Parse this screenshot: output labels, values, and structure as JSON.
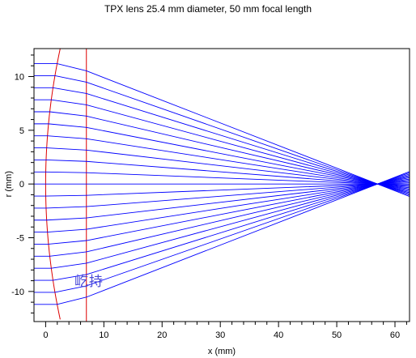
{
  "chart_data": {
    "type": "line",
    "title": "TPX lens 25.4 mm diameter, 50 mm focal length",
    "xlabel": "x (mm)",
    "ylabel": "r (mm)",
    "xlim": [
      -2,
      62.5
    ],
    "ylim": [
      -12.8,
      12.6
    ],
    "x_ticks": [
      0,
      10,
      20,
      30,
      40,
      50,
      60
    ],
    "y_ticks": [
      -10,
      -5,
      0,
      5,
      10
    ],
    "grid": false,
    "rays": {
      "color": "#0000ff",
      "count": 21,
      "input_heights": [
        -11.2,
        -10.08,
        -8.96,
        -7.84,
        -6.72,
        -5.6,
        -4.48,
        -3.36,
        -2.24,
        -1.12,
        0,
        1.12,
        2.24,
        3.36,
        4.48,
        5.6,
        6.72,
        7.84,
        8.96,
        10.08,
        11.2
      ],
      "lens_exit_x": 7,
      "focus_x": 57,
      "end_x": 62.5
    },
    "lens": {
      "color": "#dd0000",
      "front_surface": {
        "vertex_x": 0,
        "edge_x": 2.5,
        "half_height": 12.6
      },
      "back_surface_x": 7
    }
  },
  "watermark_text": "屹持"
}
